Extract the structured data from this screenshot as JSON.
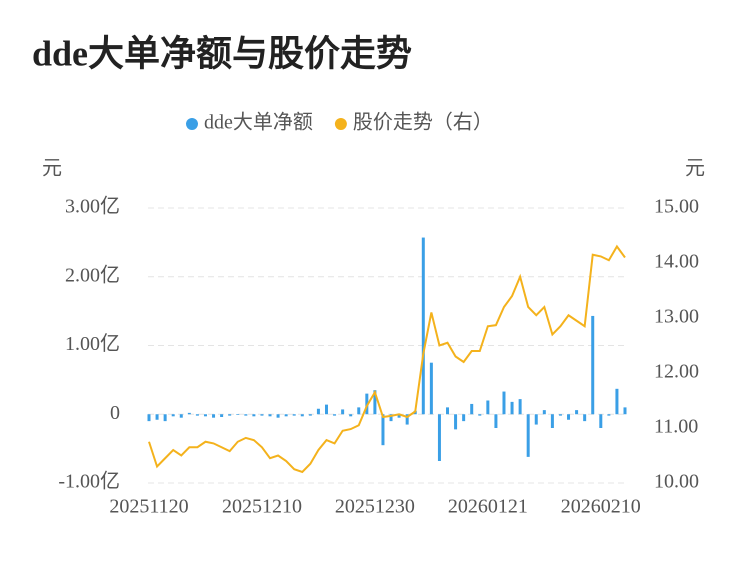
{
  "chart_data": {
    "type": "bar_line",
    "title": "dde大单净额与股价走势",
    "y_unit": "元",
    "y2_unit": "元",
    "categories": [
      "20251120",
      null,
      null,
      null,
      null,
      null,
      null,
      null,
      null,
      null,
      null,
      null,
      null,
      null,
      "20251210",
      null,
      null,
      null,
      null,
      null,
      null,
      null,
      null,
      null,
      null,
      null,
      null,
      null,
      "20251230",
      null,
      null,
      null,
      null,
      null,
      null,
      null,
      null,
      null,
      null,
      null,
      null,
      null,
      "20260121",
      null,
      null,
      null,
      null,
      null,
      null,
      null,
      null,
      null,
      null,
      null,
      null,
      null,
      "20260210",
      null,
      null,
      null
    ],
    "series": [
      {
        "name": "dde大单净额",
        "type": "bar",
        "color": "#3a9fe6",
        "values": [
          -0.1,
          -0.08,
          -0.1,
          -0.03,
          -0.05,
          0.02,
          -0.02,
          -0.03,
          -0.05,
          -0.04,
          -0.02,
          -0.01,
          -0.02,
          -0.03,
          -0.02,
          -0.03,
          -0.05,
          -0.03,
          -0.02,
          -0.03,
          -0.02,
          0.08,
          0.14,
          -0.02,
          0.07,
          -0.03,
          0.1,
          0.3,
          0.35,
          -0.45,
          -0.1,
          -0.05,
          -0.15,
          0.05,
          2.57,
          0.75,
          -0.68,
          0.1,
          -0.22,
          -0.1,
          0.15,
          -0.02,
          0.2,
          -0.2,
          0.33,
          0.18,
          0.22,
          -0.62,
          -0.15,
          0.06,
          -0.2,
          -0.02,
          -0.08,
          0.06,
          -0.1,
          1.43,
          -0.2,
          -0.02,
          0.37,
          0.1
        ]
      },
      {
        "name": "股价走势（右）",
        "type": "line",
        "axis": "y2",
        "color": "#f4b21c",
        "values": [
          10.75,
          10.3,
          10.45,
          10.6,
          10.5,
          10.65,
          10.65,
          10.75,
          10.72,
          10.65,
          10.58,
          10.75,
          10.82,
          10.78,
          10.65,
          10.45,
          10.5,
          10.4,
          10.25,
          10.2,
          10.35,
          10.6,
          10.78,
          10.72,
          10.95,
          10.98,
          11.05,
          11.4,
          11.65,
          11.2,
          11.22,
          11.25,
          11.2,
          11.3,
          12.35,
          13.1,
          12.5,
          12.55,
          12.3,
          12.2,
          12.4,
          12.4,
          12.85,
          12.87,
          13.2,
          13.4,
          13.75,
          13.2,
          13.05,
          13.2,
          12.7,
          12.85,
          13.05,
          12.95,
          12.85,
          14.15,
          14.12,
          14.05,
          14.3,
          14.1
        ]
      }
    ],
    "ylim": [
      -1,
      3
    ],
    "yticks": [
      {
        "value": -1,
        "label": "-1.00亿"
      },
      0,
      {
        "value": 1,
        "label": "1.00亿"
      },
      {
        "value": 2,
        "label": "2.00亿"
      },
      {
        "value": 3,
        "label": "3.00亿"
      }
    ],
    "y2lim": [
      10,
      15
    ],
    "y2ticks": [
      {
        "value": 10,
        "label": "10.00"
      },
      {
        "value": 11,
        "label": "11.00"
      },
      {
        "value": 12,
        "label": "12.00"
      },
      {
        "value": 13,
        "label": "13.00"
      },
      {
        "value": 14,
        "label": "14.00"
      },
      {
        "value": 15,
        "label": "15.00"
      }
    ],
    "grid": true
  }
}
